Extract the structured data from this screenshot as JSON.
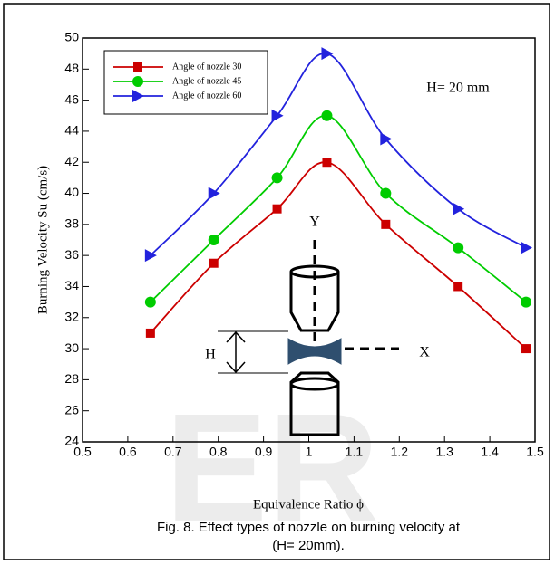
{
  "chart_data": {
    "type": "line",
    "xlabel": "Equivalence Ratio  ϕ",
    "ylabel": "Burning Velocity  Su  (cm/s)",
    "annotation": "H= 20 mm",
    "diagram_labels": [
      "Y",
      "X",
      "H"
    ],
    "caption": [
      "Fig. 8. Effect types of nozzle on burning velocity at",
      "(H= 20mm)."
    ],
    "watermark": "ER",
    "x": [
      0.65,
      0.79,
      0.93,
      1.04,
      1.17,
      1.33,
      1.48
    ],
    "series": [
      {
        "name": "Angle of nozzle  30",
        "color": "#cc0000",
        "marker": "square",
        "values": [
          31,
          35.5,
          39,
          42,
          38,
          34,
          30
        ]
      },
      {
        "name": "Angle of nozzle  45",
        "color": "#00cc00",
        "marker": "circle",
        "values": [
          33,
          37,
          41,
          45,
          40,
          36.5,
          33
        ]
      },
      {
        "name": "Angle of nozzle  60",
        "color": "#2222dd",
        "marker": "triangle",
        "values": [
          36,
          40,
          45,
          49,
          43.5,
          39,
          36.5
        ]
      }
    ],
    "xlim": [
      0.5,
      1.5
    ],
    "xticks": [
      0.5,
      0.6,
      0.7,
      0.8,
      0.9,
      1,
      1.1,
      1.2,
      1.3,
      1.4,
      1.5
    ],
    "ylim": [
      24,
      50
    ],
    "yticks": [
      24,
      26,
      28,
      30,
      32,
      34,
      36,
      38,
      40,
      42,
      44,
      46,
      48,
      50
    ],
    "legend": "upper left"
  }
}
